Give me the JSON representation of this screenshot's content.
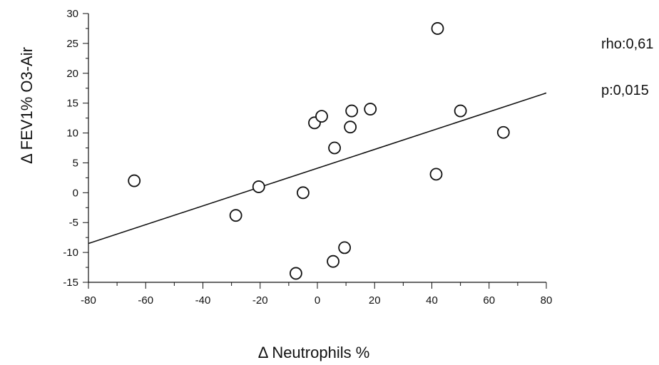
{
  "chart_data": {
    "type": "scatter",
    "title": "",
    "xlabel": "Δ Neutrophils %",
    "ylabel": "Δ FEV1% O3-Air",
    "xlim": [
      -80,
      80
    ],
    "ylim": [
      -15,
      30
    ],
    "x_ticks": [
      -80,
      -60,
      -40,
      -20,
      0,
      20,
      40,
      60,
      80
    ],
    "y_ticks": [
      -15,
      -10,
      -5,
      0,
      5,
      10,
      15,
      20,
      25,
      30
    ],
    "grid": false,
    "points": [
      {
        "x": -64,
        "y": 2
      },
      {
        "x": -28.5,
        "y": -3.8
      },
      {
        "x": -20.5,
        "y": 1
      },
      {
        "x": -5,
        "y": 0
      },
      {
        "x": -7.5,
        "y": -13.5
      },
      {
        "x": -1,
        "y": 11.7
      },
      {
        "x": 1.5,
        "y": 12.8
      },
      {
        "x": 6,
        "y": 7.5
      },
      {
        "x": 5.5,
        "y": -11.5
      },
      {
        "x": 9.5,
        "y": -9.2
      },
      {
        "x": 11.5,
        "y": 11
      },
      {
        "x": 12,
        "y": 13.7
      },
      {
        "x": 18.5,
        "y": 14
      },
      {
        "x": 41.5,
        "y": 3.1
      },
      {
        "x": 42,
        "y": 27.5
      },
      {
        "x": 50,
        "y": 13.7
      },
      {
        "x": 65,
        "y": 10.1
      }
    ],
    "regression_line": {
      "x": [
        -80,
        80
      ],
      "y": [
        -8.5,
        16.7
      ]
    },
    "annotations": [
      {
        "text": "rho:0,61"
      },
      {
        "text": "p:0,015"
      }
    ]
  }
}
